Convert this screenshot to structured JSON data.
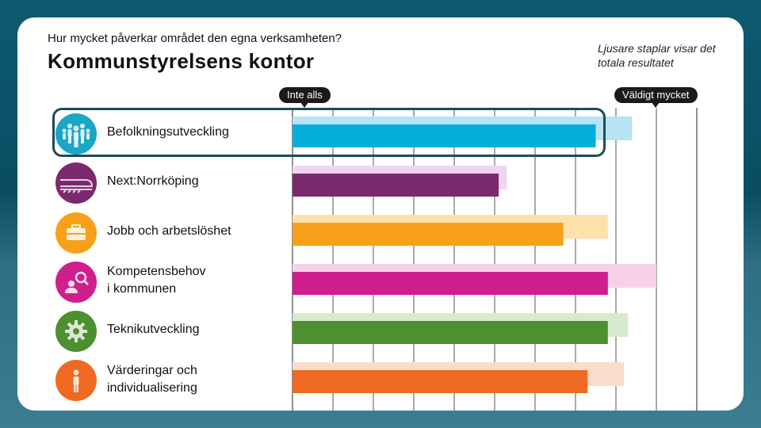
{
  "header": {
    "question": "Hur mycket påverkar området den egna verksamheten?",
    "title": "Kommunstyrelsens kontor",
    "note": "Ljusare staplar visar det totala resultatet"
  },
  "scale": {
    "min_label": "Inte alls",
    "max_label": "Väldigt mycket"
  },
  "chart_data": {
    "type": "bar",
    "orientation": "horizontal",
    "title": "Kommunstyrelsens kontor",
    "scale_range": [
      0,
      1
    ],
    "gridlines": 10,
    "categories": [
      "Befolkningsutveckling",
      "Next:Norrköping",
      "Jobb och arbetslöshet",
      "Kompetensbehov i kommunen",
      "Teknikutveckling",
      "Värderingar och individualisering"
    ],
    "series": [
      {
        "name": "Totala resultatet",
        "values": [
          0.84,
          0.53,
          0.78,
          0.9,
          0.83,
          0.82
        ]
      },
      {
        "name": "Kommunstyrelsens kontor",
        "values": [
          0.75,
          0.51,
          0.67,
          0.78,
          0.78,
          0.73
        ]
      }
    ],
    "colors_dark": [
      "#06aedb",
      "#7b2a6e",
      "#f7a11a",
      "#cf1f8c",
      "#4d8f31",
      "#ee6a22"
    ],
    "colors_light": [
      "#b7e3f2",
      "#efd6ef",
      "#fde1aa",
      "#f7d1e7",
      "#d5ebcd",
      "#f9dccc"
    ]
  },
  "items": [
    {
      "label_line1": "Befolkningsutveckling",
      "label_line2": "",
      "icon": "people-icon",
      "color": "#1aa6c7"
    },
    {
      "label_line1": "Next:Norrköping",
      "label_line2": "",
      "icon": "train-icon",
      "color": "#7b2a6e"
    },
    {
      "label_line1": "Jobb och arbetslöshet",
      "label_line2": "",
      "icon": "briefcase-icon",
      "color": "#f7a11a"
    },
    {
      "label_line1": "Kompetensbehov",
      "label_line2": "i kommunen",
      "icon": "person-search-icon",
      "color": "#cf1f8c"
    },
    {
      "label_line1": "Teknikutveckling",
      "label_line2": "",
      "icon": "gear-icon",
      "color": "#4d8f31"
    },
    {
      "label_line1": "Värderingar och",
      "label_line2": "individualisering",
      "icon": "person-icon",
      "color": "#ee6a22"
    }
  ]
}
